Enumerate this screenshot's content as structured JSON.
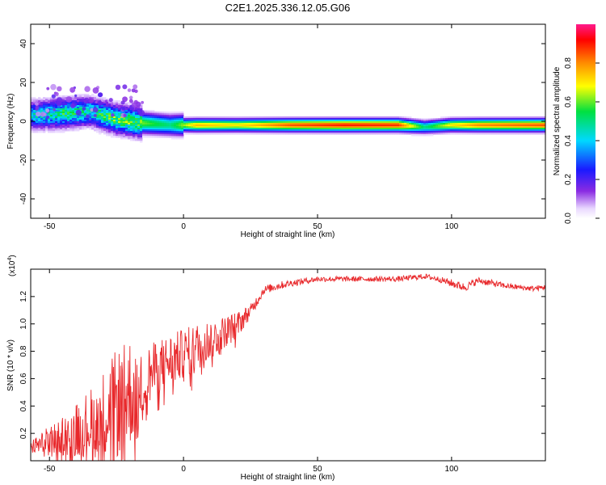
{
  "title": "C2E1.2025.336.12.05.G06",
  "chart_data": [
    {
      "type": "heatmap",
      "xlabel": "Height of straight line (km)",
      "ylabel": "Frequency (Hz)",
      "xlim": [
        -57,
        135
      ],
      "ylim": [
        -50,
        50
      ],
      "xticks": [
        -50,
        0,
        50,
        100
      ],
      "yticks": [
        40,
        20,
        0,
        -20,
        -40
      ],
      "colorbar": {
        "label": "Normalized spectral amplitude",
        "range": [
          0.0,
          1.0
        ],
        "ticks": [
          0.0,
          0.2,
          0.4,
          0.6,
          0.8
        ],
        "colormap": "rainbow (white-purple-blue-cyan-green-yellow-orange-red-magenta)"
      },
      "ridge": {
        "description": "Dominant spectral band near 0 Hz across heights",
        "x": [
          -57,
          -45,
          -35,
          -25,
          -15,
          -5,
          5,
          20,
          40,
          60,
          80,
          90,
          100,
          110,
          135
        ],
        "frequency_hz": [
          3,
          4,
          5,
          1,
          -1,
          -2,
          -2,
          -2,
          -2,
          -2,
          -2,
          -3,
          -2,
          -2,
          -2
        ],
        "amplitude": [
          0.4,
          0.5,
          0.45,
          0.55,
          0.6,
          0.5,
          0.75,
          0.7,
          0.85,
          0.9,
          0.88,
          0.5,
          0.7,
          0.8,
          0.85
        ]
      }
    },
    {
      "type": "line",
      "xlabel": "Height of straight line (km)",
      "ylabel": "SNR (10 * v/v)",
      "y_scale_label": "(x10",
      "y_scale_exp": "4",
      "y_scale_close": ")",
      "xlim": [
        -57,
        135
      ],
      "ylim": [
        0,
        1.4
      ],
      "xticks": [
        -50,
        0,
        50,
        100
      ],
      "yticks": [
        0.2,
        0.4,
        0.6,
        0.8,
        1.0,
        1.2
      ],
      "series": [
        {
          "name": "SNR",
          "color": "#e8282b",
          "x": [
            -57,
            -50,
            -45,
            -40,
            -35,
            -30,
            -28,
            -25,
            -22,
            -20,
            -17,
            -15,
            -10,
            -5,
            0,
            5,
            10,
            15,
            20,
            25,
            30,
            35,
            40,
            50,
            60,
            70,
            80,
            90,
            95,
            100,
            105,
            110,
            115,
            120,
            125,
            130,
            135
          ],
          "values": [
            0.1,
            0.15,
            0.2,
            0.25,
            0.3,
            0.35,
            0.42,
            0.45,
            0.5,
            0.55,
            0.45,
            0.6,
            0.7,
            0.75,
            0.8,
            0.85,
            0.9,
            0.95,
            1.0,
            1.1,
            1.25,
            1.28,
            1.3,
            1.33,
            1.33,
            1.33,
            1.33,
            1.35,
            1.33,
            1.3,
            1.27,
            1.32,
            1.3,
            1.28,
            1.27,
            1.26,
            1.27
          ],
          "noise": [
            0.05,
            0.12,
            0.15,
            0.2,
            0.25,
            0.35,
            0.35,
            0.4,
            0.4,
            0.4,
            0.3,
            0.25,
            0.2,
            0.2,
            0.18,
            0.18,
            0.15,
            0.12,
            0.1,
            0.05,
            0.03,
            0.03,
            0.025,
            0.02,
            0.02,
            0.02,
            0.02,
            0.02,
            0.02,
            0.03,
            0.03,
            0.025,
            0.025,
            0.02,
            0.02,
            0.02,
            0.02
          ]
        }
      ]
    }
  ]
}
